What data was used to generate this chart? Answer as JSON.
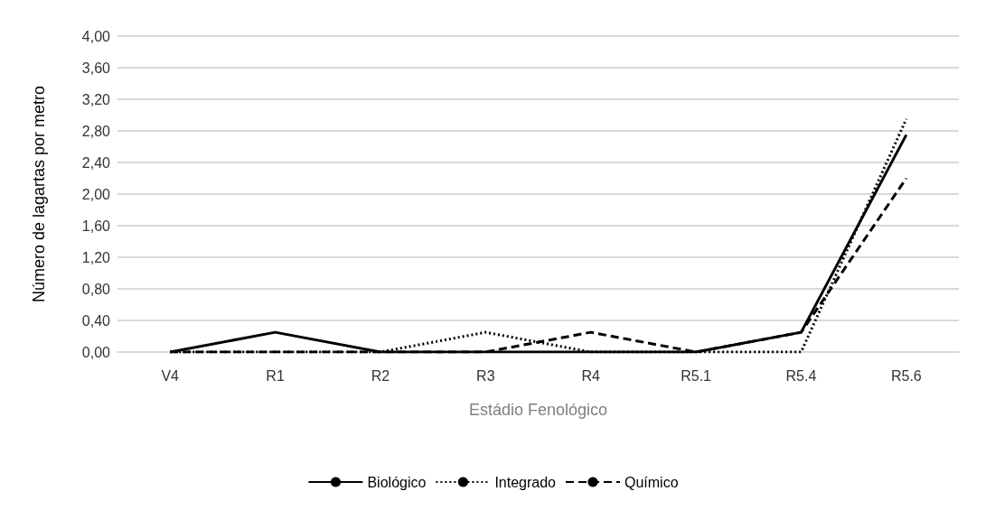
{
  "chart_data": {
    "type": "line",
    "xlabel": "Estádio Fenológico",
    "ylabel": "Número de lagartas por metro",
    "categories": [
      "V4",
      "R1",
      "R2",
      "R3",
      "R4",
      "R5.1",
      "R5.4",
      "R5.6"
    ],
    "series": [
      {
        "name": "Biológico",
        "color": "#000000",
        "line_style": "solid",
        "values": [
          0,
          0.25,
          0,
          0,
          0,
          0,
          0.25,
          2.75
        ]
      },
      {
        "name": "Integrado",
        "color": "#000000",
        "line_style": "dotted",
        "values": [
          0,
          0,
          0,
          0.25,
          0,
          0,
          0,
          2.95
        ]
      },
      {
        "name": "Químico",
        "color": "#000000",
        "line_style": "dashed",
        "values": [
          0,
          0,
          0,
          0,
          0.25,
          0,
          0.25,
          2.2
        ]
      }
    ],
    "ylim": [
      0,
      4
    ],
    "yticks": [
      {
        "value": 0,
        "label": "0,00"
      },
      {
        "value": 0.4,
        "label": "0,40"
      },
      {
        "value": 0.8,
        "label": "0,80"
      },
      {
        "value": 1.2,
        "label": "1,20"
      },
      {
        "value": 1.6,
        "label": "1,60"
      },
      {
        "value": 2,
        "label": "2,00"
      },
      {
        "value": 2.4,
        "label": "2,40"
      },
      {
        "value": 2.8,
        "label": "2,80"
      },
      {
        "value": 3.2,
        "label": "3,20"
      },
      {
        "value": 3.6,
        "label": "3,60"
      },
      {
        "value": 4,
        "label": "4,00"
      }
    ],
    "grid": "y",
    "legend": "bottom",
    "marker": "none"
  }
}
